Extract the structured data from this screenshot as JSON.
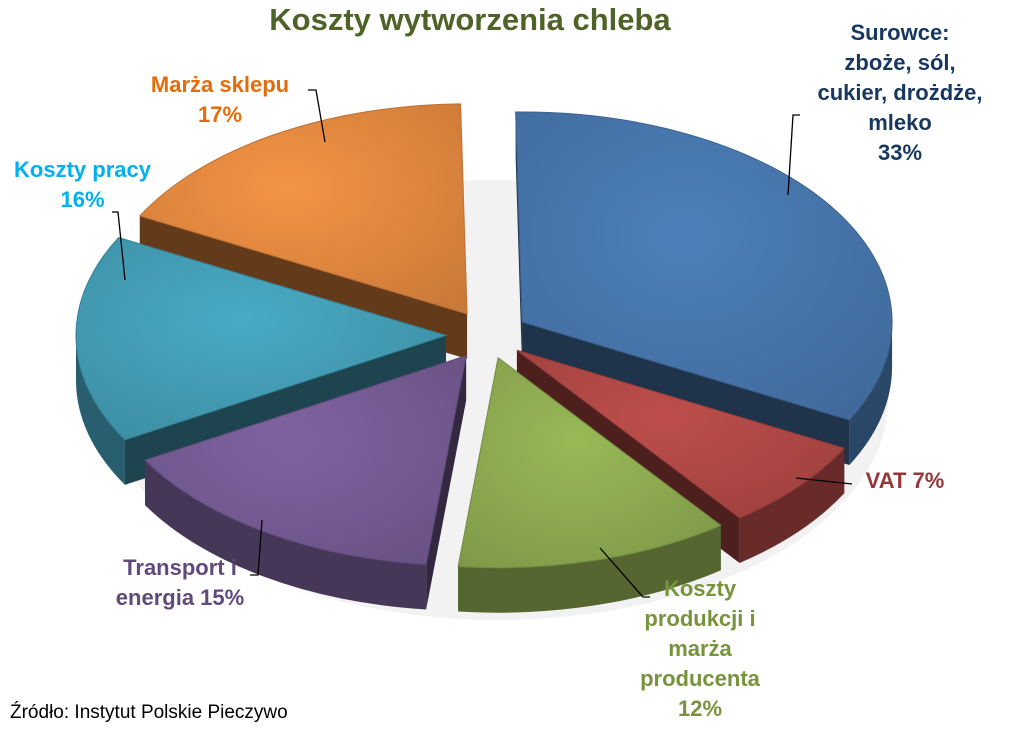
{
  "chart_data": {
    "type": "pie",
    "title": "Koszty wytworzenia chleba",
    "slices": [
      {
        "label_lines": [
          "Surowce:",
          "zboże, sól,",
          "cukier, drożdże,",
          "mleko",
          "33%"
        ],
        "value": 33,
        "color": "#4572a7"
      },
      {
        "label_lines": [
          "VAT 7%"
        ],
        "value": 7,
        "color": "#aa4643"
      },
      {
        "label_lines": [
          "Koszty",
          "produkcji i",
          "marża",
          "producenta",
          "12%"
        ],
        "value": 12,
        "color": "#89a54e"
      },
      {
        "label_lines": [
          "Transport i",
          "energia 15%"
        ],
        "value": 15,
        "color": "#71588f"
      },
      {
        "label_lines": [
          "Koszty pracy",
          "16%"
        ],
        "value": 16,
        "color": "#4198af"
      },
      {
        "label_lines": [
          "Marża sklepu",
          "17%"
        ],
        "value": 17,
        "color": "#db843d"
      }
    ],
    "label_colors": [
      "#17375e",
      "#953735",
      "#77933c",
      "#604a7b",
      "#00b0f0",
      "#e46c0a"
    ],
    "legend": "none",
    "style": "3d-exploded"
  },
  "source": "Źródło: Instytut Polskie Pieczywo"
}
